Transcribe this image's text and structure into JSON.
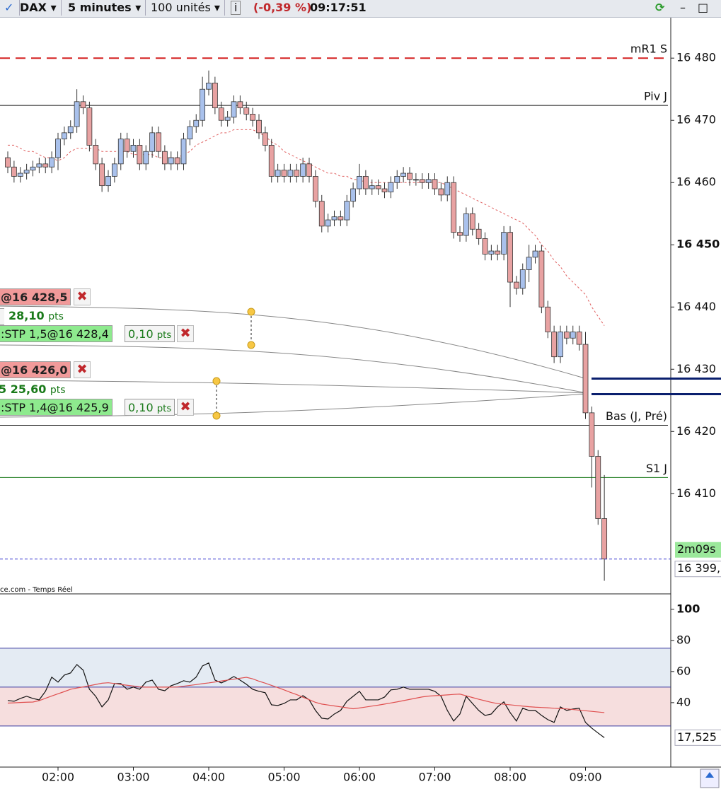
{
  "toolbar": {
    "instrument": "DAX",
    "interval": "5 minutes",
    "size": "100 unités",
    "change": "(-0,39 %)",
    "time": "09:17:51"
  },
  "orders": [
    {
      "price": "@16 428,5",
      "pnl": "28,10",
      "unit": "pts",
      "stop": ":STP 1,5@16 428,4",
      "stop_pts": "0,10"
    },
    {
      "price": "@16 426,0",
      "prefix": "5",
      "pnl": "25,60",
      "unit": "pts",
      "stop": ":STP 1,4@16 425,9",
      "stop_pts": "0,10"
    }
  ],
  "source": "ce.com - Temps Réel",
  "chart_data": [
    {
      "type": "candlestick",
      "categories": [
        null,
        null,
        null,
        null,
        null,
        null,
        null,
        null,
        "02:00",
        null,
        null,
        null,
        null,
        null,
        null,
        null,
        null,
        null,
        null,
        null,
        "03:00",
        null,
        null,
        null,
        null,
        null,
        null,
        null,
        null,
        null,
        null,
        null,
        "04:00",
        null,
        null,
        null,
        null,
        null,
        null,
        null,
        null,
        null,
        null,
        null,
        "05:00",
        null,
        null,
        null,
        null,
        null,
        null,
        null,
        null,
        null,
        null,
        null,
        "06:00",
        null,
        null,
        null,
        null,
        null,
        null,
        null,
        null,
        null,
        null,
        null,
        "07:00",
        null,
        null,
        null,
        null,
        null,
        null,
        null,
        null,
        null,
        null,
        null,
        "08:00",
        null,
        null,
        null,
        null,
        null,
        null,
        null,
        null,
        null,
        null,
        null,
        "09:00",
        null,
        null,
        null
      ],
      "open": [
        16464,
        16462.5,
        16461,
        16461.5,
        16462,
        16462.5,
        16463,
        16462.5,
        16464,
        16467,
        16468,
        16469,
        16473,
        16472,
        16466,
        16463,
        16459.5,
        16461,
        16463,
        16467,
        16465,
        16466,
        16463,
        16465,
        16468,
        16465,
        16463,
        16464,
        16463,
        16467,
        16469,
        16470,
        16475,
        16476,
        16472,
        16470,
        16470.5,
        16473,
        16472,
        16471,
        16470,
        16468,
        16466,
        16461,
        16462,
        16461,
        16462,
        16461,
        16463,
        16461,
        16457,
        16453,
        16454,
        16454.5,
        16454,
        16457,
        16459,
        16461,
        16459,
        16459.5,
        16459,
        16458.5,
        16460,
        16461,
        16461.5,
        16460.5,
        16460.5,
        16460,
        16460.5,
        16459,
        16458,
        16460,
        16452,
        16451.5,
        16455,
        16452.5,
        16451,
        16448.5,
        16449,
        16448.5,
        16452,
        16444,
        16443,
        16446,
        16448,
        16449,
        16440,
        16436,
        16432,
        16436,
        16435,
        16436,
        16434,
        16423,
        16416,
        16406
      ],
      "high": [
        16465,
        16463.5,
        16462.5,
        16463,
        16463.5,
        16464,
        16464,
        16465,
        16468,
        16469,
        16470,
        16475,
        16474,
        16473,
        16467,
        16464,
        16462,
        16464,
        16468,
        16468,
        16467,
        16467,
        16466,
        16469,
        16469,
        16466,
        16465,
        16465,
        16468,
        16470,
        16471,
        16477,
        16478,
        16477,
        16473,
        16471.5,
        16474,
        16474,
        16473,
        16472,
        16471,
        16469,
        16467,
        16463,
        16463,
        16463,
        16463,
        16464,
        16464,
        16462,
        16458,
        16455,
        16455.5,
        16455.5,
        16458,
        16460,
        16463,
        16462,
        16460.5,
        16460.5,
        16460,
        16461,
        16462,
        16462.5,
        16462.5,
        16461.5,
        16461.5,
        16461.5,
        16461.5,
        16460,
        16461,
        16461,
        16453,
        16456,
        16456,
        16453.5,
        16452,
        16450,
        16450,
        16453,
        16453,
        16445,
        16447,
        16450,
        16450,
        16450,
        16441,
        16437,
        16437,
        16437,
        16437,
        16437,
        16436,
        16424,
        16417,
        16413
      ],
      "low": [
        16461.5,
        16460,
        16460,
        16460.5,
        16461,
        16461.5,
        16461.5,
        16461.5,
        16462,
        16466,
        16467,
        16468,
        16471,
        16465,
        16462,
        16458.5,
        16458.5,
        16460,
        16462,
        16464,
        16464,
        16462,
        16462,
        16464,
        16464,
        16462,
        16462,
        16462,
        16462,
        16466,
        16468,
        16469,
        16474,
        16471,
        16469,
        16469,
        16469.5,
        16471,
        16470,
        16469,
        16467,
        16465,
        16460,
        16460,
        16460,
        16460,
        16460,
        16460,
        16460,
        16456,
        16452,
        16452,
        16453,
        16453,
        16453,
        16456,
        16458,
        16458,
        16458,
        16458,
        16457.5,
        16457.5,
        16459,
        16460,
        16459.5,
        16459.5,
        16459,
        16459,
        16458,
        16457,
        16457,
        16451,
        16450.5,
        16450.5,
        16451.5,
        16450,
        16447.5,
        16447.5,
        16447.5,
        16447.5,
        16440,
        16442,
        16442,
        16444,
        16447,
        16439,
        16435,
        16431,
        16431,
        16434,
        16434,
        16433,
        16422,
        16411,
        16405,
        16396
      ],
      "close": [
        16462.5,
        16461,
        16461.5,
        16462,
        16462.5,
        16463,
        16462.5,
        16464,
        16467,
        16468,
        16469,
        16473,
        16472,
        16466,
        16463,
        16459.5,
        16461,
        16463,
        16467,
        16465,
        16466,
        16463,
        16465,
        16468,
        16465,
        16463,
        16464,
        16463,
        16467,
        16469,
        16470,
        16475,
        16476,
        16472,
        16470,
        16470.5,
        16473,
        16472,
        16471,
        16470,
        16468,
        16466,
        16461,
        16462,
        16461,
        16462,
        16461,
        16463,
        16461,
        16457,
        16453,
        16454,
        16454.5,
        16454,
        16457,
        16459,
        16461,
        16459,
        16459.5,
        16459,
        16458.5,
        16460,
        16461,
        16461.5,
        16460.5,
        16460.5,
        16460,
        16460.5,
        16459,
        16458,
        16460,
        16452,
        16451.5,
        16455,
        16452.5,
        16451,
        16448.5,
        16449,
        16448.5,
        16452,
        16444,
        16443,
        16446,
        16448,
        16449,
        16440,
        16436,
        16432,
        16436,
        16435,
        16436,
        16434,
        16423,
        16416,
        16406,
        16399.5
      ],
      "up_color": "#a9c1ec",
      "down_color": "#e8a2a2",
      "overlay": {
        "color": "#e06060",
        "values": [
          16466,
          16466,
          16465.5,
          16465,
          16465,
          16464.5,
          16464,
          16464,
          16463.5,
          16464,
          16465,
          16465.5,
          16465.5,
          16465.5,
          16465.5,
          16465,
          16465,
          16465,
          16465,
          16465,
          16464.5,
          16464.5,
          16464.5,
          16464.5,
          16464,
          16464,
          16464,
          16464,
          16464.5,
          16465,
          16466,
          16466.5,
          16467,
          16467.5,
          16468,
          16468,
          16468.5,
          16468.5,
          16468.5,
          16468.5,
          16468,
          16467.5,
          16466.5,
          16466,
          16465,
          16464.5,
          16464,
          16463.5,
          16463,
          16462.5,
          16462,
          16461.5,
          16461.5,
          16461,
          16461,
          16460.5,
          16460.5,
          16460,
          16460,
          16460,
          16460,
          16460,
          16460,
          16460,
          16460,
          16460,
          16460,
          16460,
          16460,
          16460,
          16459.5,
          16459,
          16458.5,
          16458,
          16457.5,
          16457,
          16456.5,
          16456,
          16455.5,
          16455,
          16454.5,
          16454,
          16453.5,
          16452.5,
          16451.5,
          16450,
          16449,
          16447.5,
          16446.5,
          16445,
          16444,
          16443,
          16442,
          16440,
          16438.5,
          16437
        ]
      },
      "levels": [
        {
          "value": 16480,
          "label": "mR1 S",
          "color": "#d42020",
          "dash": true
        },
        {
          "value": 16472.4,
          "label": "Piv J",
          "color": "#111111",
          "dash": false
        },
        {
          "value": 16421,
          "label": "Bas (J, Pré)",
          "color": "#111111",
          "dash": false
        },
        {
          "value": 16412.6,
          "label": "S1 J",
          "color": "#1a7a1a",
          "dash": false
        }
      ],
      "positions": [
        16428.5,
        16426.0
      ],
      "position_color": "#0a1f6e",
      "last_price": {
        "value": 16399.5,
        "label": "16 399,"
      },
      "timer": "2m09s",
      "ylim": [
        16393.9,
        16486.5
      ],
      "yticks": [
        {
          "value": 16480,
          "label": "16 480"
        },
        {
          "value": 16470,
          "label": "16 470"
        },
        {
          "value": 16460,
          "label": "16 460"
        },
        {
          "value": 16450,
          "label": "16 450"
        },
        {
          "value": 16440,
          "label": "16 440"
        },
        {
          "value": 16430,
          "label": "16 430"
        },
        {
          "value": 16420,
          "label": "16 420"
        },
        {
          "value": 16410,
          "label": "16 410"
        }
      ]
    },
    {
      "type": "line",
      "series": [
        {
          "color": "#111111",
          "values": [
            41.4,
            40.9,
            42.7,
            44.1,
            42.7,
            41.8,
            47.3,
            56.4,
            53.2,
            57.7,
            59.1,
            64.5,
            60.9,
            48.6,
            44.1,
            37.3,
            41.8,
            52.3,
            52.3,
            48.6,
            50,
            48.6,
            53.2,
            54.5,
            48.6,
            47.7,
            50.9,
            52.3,
            54.1,
            53.2,
            56.4,
            63.6,
            65.5,
            54.5,
            52.7,
            54.5,
            56.8,
            54.5,
            51.8,
            48.6,
            47.3,
            46.4,
            38.6,
            38.2,
            39.5,
            41.8,
            41.8,
            44.5,
            41.8,
            35,
            30,
            29.5,
            32.7,
            35,
            40.9,
            44.1,
            47.3,
            41.8,
            41.8,
            41.8,
            43.6,
            48.2,
            48.6,
            50,
            48.6,
            48.6,
            48.6,
            48.6,
            47.3,
            44.1,
            35,
            28.2,
            32.7,
            44.1,
            39.5,
            35,
            31.8,
            32.7,
            37.3,
            40.5,
            33.6,
            28.2,
            36.4,
            35,
            35,
            31.8,
            29.1,
            27.3,
            37.3,
            35,
            35.9,
            36.4,
            27.3,
            23.6,
            20.5,
            17.525
          ]
        },
        {
          "color": "#e05050",
          "values": [
            39.7,
            39.9,
            40.1,
            40.3,
            40.4,
            41.3,
            42.8,
            44.3,
            45.7,
            47.1,
            48.6,
            49.4,
            50.1,
            50.9,
            51.7,
            52.5,
            52.8,
            52.3,
            51.7,
            51.2,
            50.7,
            50.2,
            50,
            50,
            50,
            50,
            50,
            50.1,
            50.6,
            51.1,
            51.6,
            52.2,
            52.7,
            53.3,
            53.9,
            54.5,
            55.1,
            55.7,
            56.3,
            55.3,
            53.8,
            52.5,
            51.1,
            49.7,
            48.2,
            46.6,
            45.2,
            43.5,
            41.9,
            40.2,
            39.1,
            38.5,
            37.9,
            37.3,
            36.7,
            36.1,
            36.6,
            37.2,
            37.8,
            38.4,
            39.1,
            39.8,
            40.5,
            41.3,
            42.1,
            42.9,
            43.7,
            44.2,
            44.5,
            44.7,
            45,
            45.3,
            45.5,
            44.4,
            43.3,
            42.2,
            41.2,
            40.2,
            39.4,
            39,
            38.6,
            38.2,
            37.8,
            37.4,
            37.1,
            36.9,
            36.7,
            36.4,
            36.2,
            36,
            35.6,
            35.2,
            34.8,
            34.4,
            34,
            33.6
          ]
        }
      ],
      "last_label": "17,525",
      "levels": [
        75,
        50,
        25
      ],
      "band_colors": [
        "#e4ebf3",
        "#f6dede"
      ],
      "ylim": [
        -1.4,
        109
      ],
      "yticks": [
        100,
        80,
        60,
        40
      ]
    }
  ]
}
